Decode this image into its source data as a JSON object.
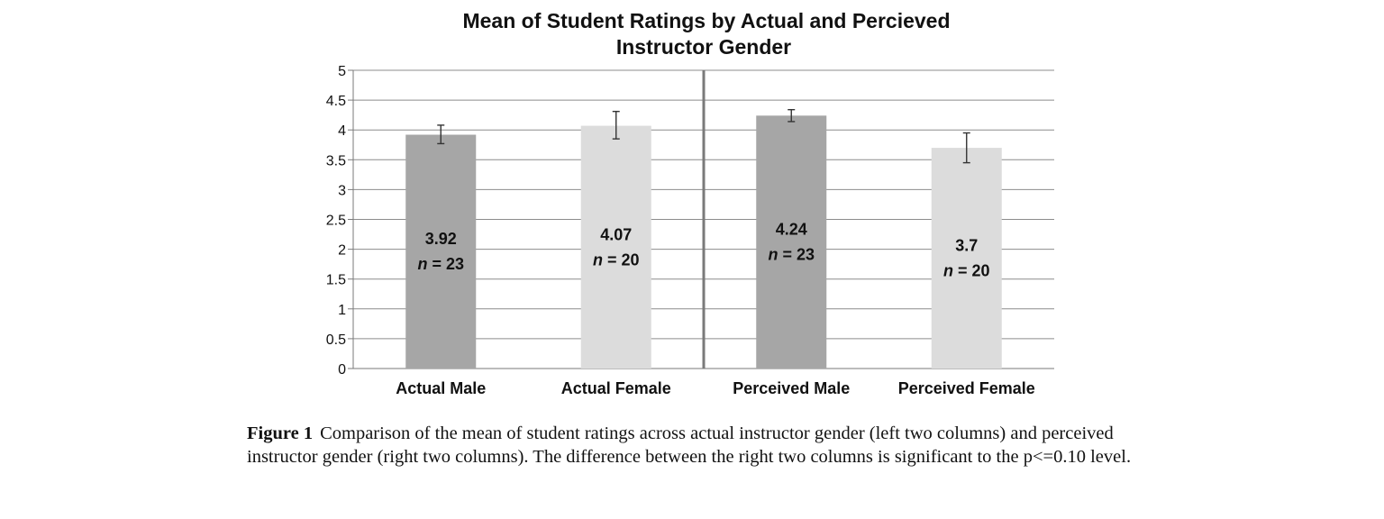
{
  "chart_data": {
    "type": "bar",
    "title_lines": [
      "Mean of Student Ratings by Actual and Percieved",
      "Instructor Gender"
    ],
    "xlabel": "",
    "ylabel": "",
    "ylim": [
      0,
      5
    ],
    "yticks": [
      "0",
      "0.5",
      "1",
      "1.5",
      "2",
      "2.5",
      "3",
      "3.5",
      "4",
      "4.5",
      "5"
    ],
    "grid": true,
    "categories": [
      "Actual Male",
      "Actual Female",
      "Perceived Male",
      "Perceived Female"
    ],
    "values": [
      3.92,
      4.07,
      4.24,
      3.7
    ],
    "error_bars": [
      [
        3.77,
        4.08
      ],
      [
        3.85,
        4.31
      ],
      [
        4.14,
        4.34
      ],
      [
        3.45,
        3.95
      ]
    ],
    "n_labels": [
      "n = 23",
      "n = 20",
      "n = 23",
      "n = 20"
    ],
    "value_labels": [
      "3.92",
      "4.07",
      "4.24",
      "3.7"
    ],
    "colors": [
      "#a6a6a6",
      "#dcdcdc",
      "#a6a6a6",
      "#dcdcdc"
    ],
    "divider_between": [
      1,
      2
    ]
  },
  "caption": {
    "label": "Figure 1",
    "text": "Comparison of the mean of student ratings across actual instructor gender (left two columns) and perceived instructor gender (right two columns). The difference between the right two columns is significant to the p<=0.10 level."
  }
}
